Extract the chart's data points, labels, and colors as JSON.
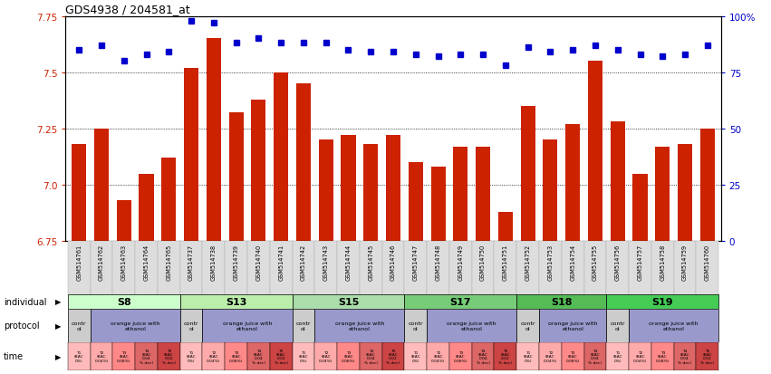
{
  "title": "GDS4938 / 204581_at",
  "gsm_labels": [
    "GSM514761",
    "GSM514762",
    "GSM514763",
    "GSM514764",
    "GSM514765",
    "GSM514737",
    "GSM514738",
    "GSM514739",
    "GSM514740",
    "GSM514741",
    "GSM514742",
    "GSM514743",
    "GSM514744",
    "GSM514745",
    "GSM514746",
    "GSM514747",
    "GSM514748",
    "GSM514749",
    "GSM514750",
    "GSM514751",
    "GSM514752",
    "GSM514753",
    "GSM514754",
    "GSM514755",
    "GSM514756",
    "GSM514757",
    "GSM514758",
    "GSM514759",
    "GSM514760"
  ],
  "bar_values": [
    7.18,
    7.25,
    6.93,
    7.05,
    7.12,
    7.52,
    7.65,
    7.32,
    7.38,
    7.5,
    7.45,
    7.2,
    7.22,
    7.18,
    7.22,
    7.1,
    7.08,
    7.17,
    7.17,
    6.88,
    7.35,
    7.2,
    7.27,
    7.55,
    7.28,
    7.05,
    7.17,
    7.18,
    7.25
  ],
  "percentile_values": [
    85,
    87,
    80,
    83,
    84,
    98,
    97,
    88,
    90,
    88,
    88,
    88,
    85,
    84,
    84,
    83,
    82,
    83,
    83,
    78,
    86,
    84,
    85,
    87,
    85,
    83,
    82,
    83,
    87
  ],
  "ylim_left": [
    6.75,
    7.75
  ],
  "ylim_right": [
    0,
    100
  ],
  "yticks_left": [
    6.75,
    7.0,
    7.25,
    7.5,
    7.75
  ],
  "yticks_right": [
    0,
    25,
    50,
    75,
    100
  ],
  "bar_color": "#cc2200",
  "dot_color": "#0000cc",
  "ind_colors": [
    "#ccffcc",
    "#bbeeaa",
    "#aaddaa",
    "#77cc77",
    "#55bb55",
    "#44cc55"
  ],
  "ind_groups": [
    {
      "label": "S8",
      "start": 0,
      "end": 5
    },
    {
      "label": "S13",
      "start": 5,
      "end": 10
    },
    {
      "label": "S15",
      "start": 10,
      "end": 15
    },
    {
      "label": "S17",
      "start": 15,
      "end": 20
    },
    {
      "label": "S18",
      "start": 20,
      "end": 24
    },
    {
      "label": "S19",
      "start": 24,
      "end": 29
    }
  ],
  "prot_groups": [
    {
      "label": "contr\nol",
      "start": 0,
      "end": 1,
      "bg": "#cccccc"
    },
    {
      "label": "orange juice with\nethanol",
      "start": 1,
      "end": 5,
      "bg": "#9999cc"
    },
    {
      "label": "contr\nol",
      "start": 5,
      "end": 6,
      "bg": "#cccccc"
    },
    {
      "label": "orange juice with\nethanol",
      "start": 6,
      "end": 10,
      "bg": "#9999cc"
    },
    {
      "label": "contr\nol",
      "start": 10,
      "end": 11,
      "bg": "#cccccc"
    },
    {
      "label": "orange juice with\nethanol",
      "start": 11,
      "end": 15,
      "bg": "#9999cc"
    },
    {
      "label": "contr\nol",
      "start": 15,
      "end": 16,
      "bg": "#cccccc"
    },
    {
      "label": "orange juice with\nethanol",
      "start": 16,
      "end": 20,
      "bg": "#9999cc"
    },
    {
      "label": "contr\nol",
      "start": 20,
      "end": 21,
      "bg": "#cccccc"
    },
    {
      "label": "orange juice with\nethanol",
      "start": 21,
      "end": 24,
      "bg": "#9999cc"
    },
    {
      "label": "contr\nol",
      "start": 24,
      "end": 25,
      "bg": "#cccccc"
    },
    {
      "label": "orange juice with\nethanol",
      "start": 25,
      "end": 29,
      "bg": "#9999cc"
    }
  ],
  "time_per_sample": [
    0,
    1,
    2,
    3,
    4,
    0,
    1,
    2,
    3,
    4,
    0,
    1,
    2,
    3,
    4,
    0,
    1,
    2,
    3,
    4,
    0,
    1,
    2,
    3,
    0,
    1,
    2,
    3,
    4
  ],
  "time_labels_short": [
    "T1\n(BAC\n0%)",
    "T2\n(BAC\n0.04%)",
    "T3\n(BAC\n0.08%)",
    "T4\n(BAC\n0.04\n% dec)",
    "T5\n(BAC\n0.02\n% dec)"
  ],
  "time_colors": [
    "#ffbbbb",
    "#ffaaaa",
    "#ff8888",
    "#dd6666",
    "#cc4444"
  ],
  "background_color": "#ffffff",
  "left_axis_color": "#cc2200",
  "right_axis_color": "#0000cc"
}
